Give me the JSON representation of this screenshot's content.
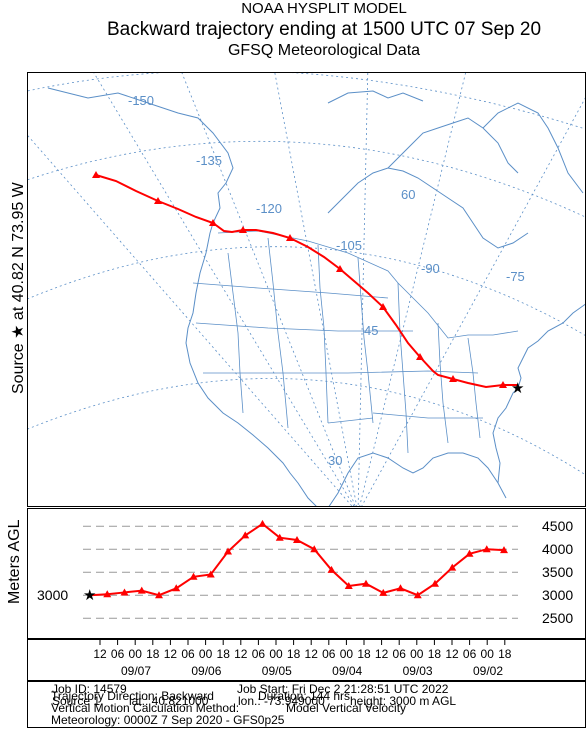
{
  "header": {
    "line1": "NOAA HYSPLIT MODEL",
    "line2": "Backward trajectory ending at 1500 UTC 07 Sep 20",
    "line3": "GFSQ Meteorological Data"
  },
  "side_labels": {
    "source": "Source ★ at  40.82 N  73.95 W",
    "height": "Meters AGL"
  },
  "map": {
    "longitude_labels": [
      "-150",
      "-135",
      "-120",
      "-105",
      "-90",
      "-75"
    ],
    "latitude_labels": [
      "60",
      "45",
      "30"
    ],
    "colors": {
      "trajectory": "#ff0000",
      "coast": "#5b8fc7",
      "grid": "#5b8fc7",
      "state": "#5b8fc7"
    }
  },
  "chart_data": {
    "type": "line",
    "title": "Backward trajectory ending at 1500 UTC 07 Sep 20",
    "xlabel": "",
    "ylabel": "Meters AGL",
    "source_height_label": "3000",
    "yticks": [
      "4500",
      "4000",
      "3500",
      "3000",
      "2500"
    ],
    "ylim": [
      2200,
      4700
    ],
    "hours_back_range": [
      0,
      150
    ],
    "x_hours_back": [
      0,
      6,
      12,
      18,
      24,
      30,
      36,
      42,
      48,
      54,
      60,
      66,
      72,
      78,
      84,
      90,
      96,
      102,
      108,
      114,
      120,
      126,
      132,
      138,
      144
    ],
    "heights": [
      3000,
      3020,
      3060,
      3100,
      3000,
      3150,
      3400,
      3450,
      3950,
      4300,
      4550,
      4250,
      4200,
      4000,
      3550,
      3200,
      3250,
      3050,
      3150,
      3000,
      3250,
      3600,
      3900,
      4000,
      3980
    ],
    "time_ticks": [
      "12",
      "06",
      "00",
      "18",
      "12",
      "06",
      "00",
      "18",
      "12",
      "06",
      "00",
      "18",
      "12",
      "06",
      "00",
      "18",
      "12",
      "06",
      "00",
      "18",
      "12",
      "06",
      "00",
      "18"
    ],
    "date_labels": [
      "09/07",
      "09/06",
      "09/05",
      "09/04",
      "09/03",
      "09/02"
    ],
    "grid": true
  },
  "info": {
    "job_id": "Job ID: 14579",
    "job_start": "Job Start: Fri Dec  2 21:28:51 UTC 2022",
    "source1": "Source 1",
    "lat": "lat.: 40.821000",
    "lon": "lon.: -73.949000",
    "height": "height: 3000 m AGL",
    "direction": "Trajectory Direction: Backward",
    "duration": "Duration: 144 hrs",
    "vertical_method": "Vertical Motion Calculation Method:",
    "vertical_model": "Model Vertical Velocity",
    "meteorology": "Meteorology: 0000Z  7 Sep 2020 - GFS0p25"
  }
}
